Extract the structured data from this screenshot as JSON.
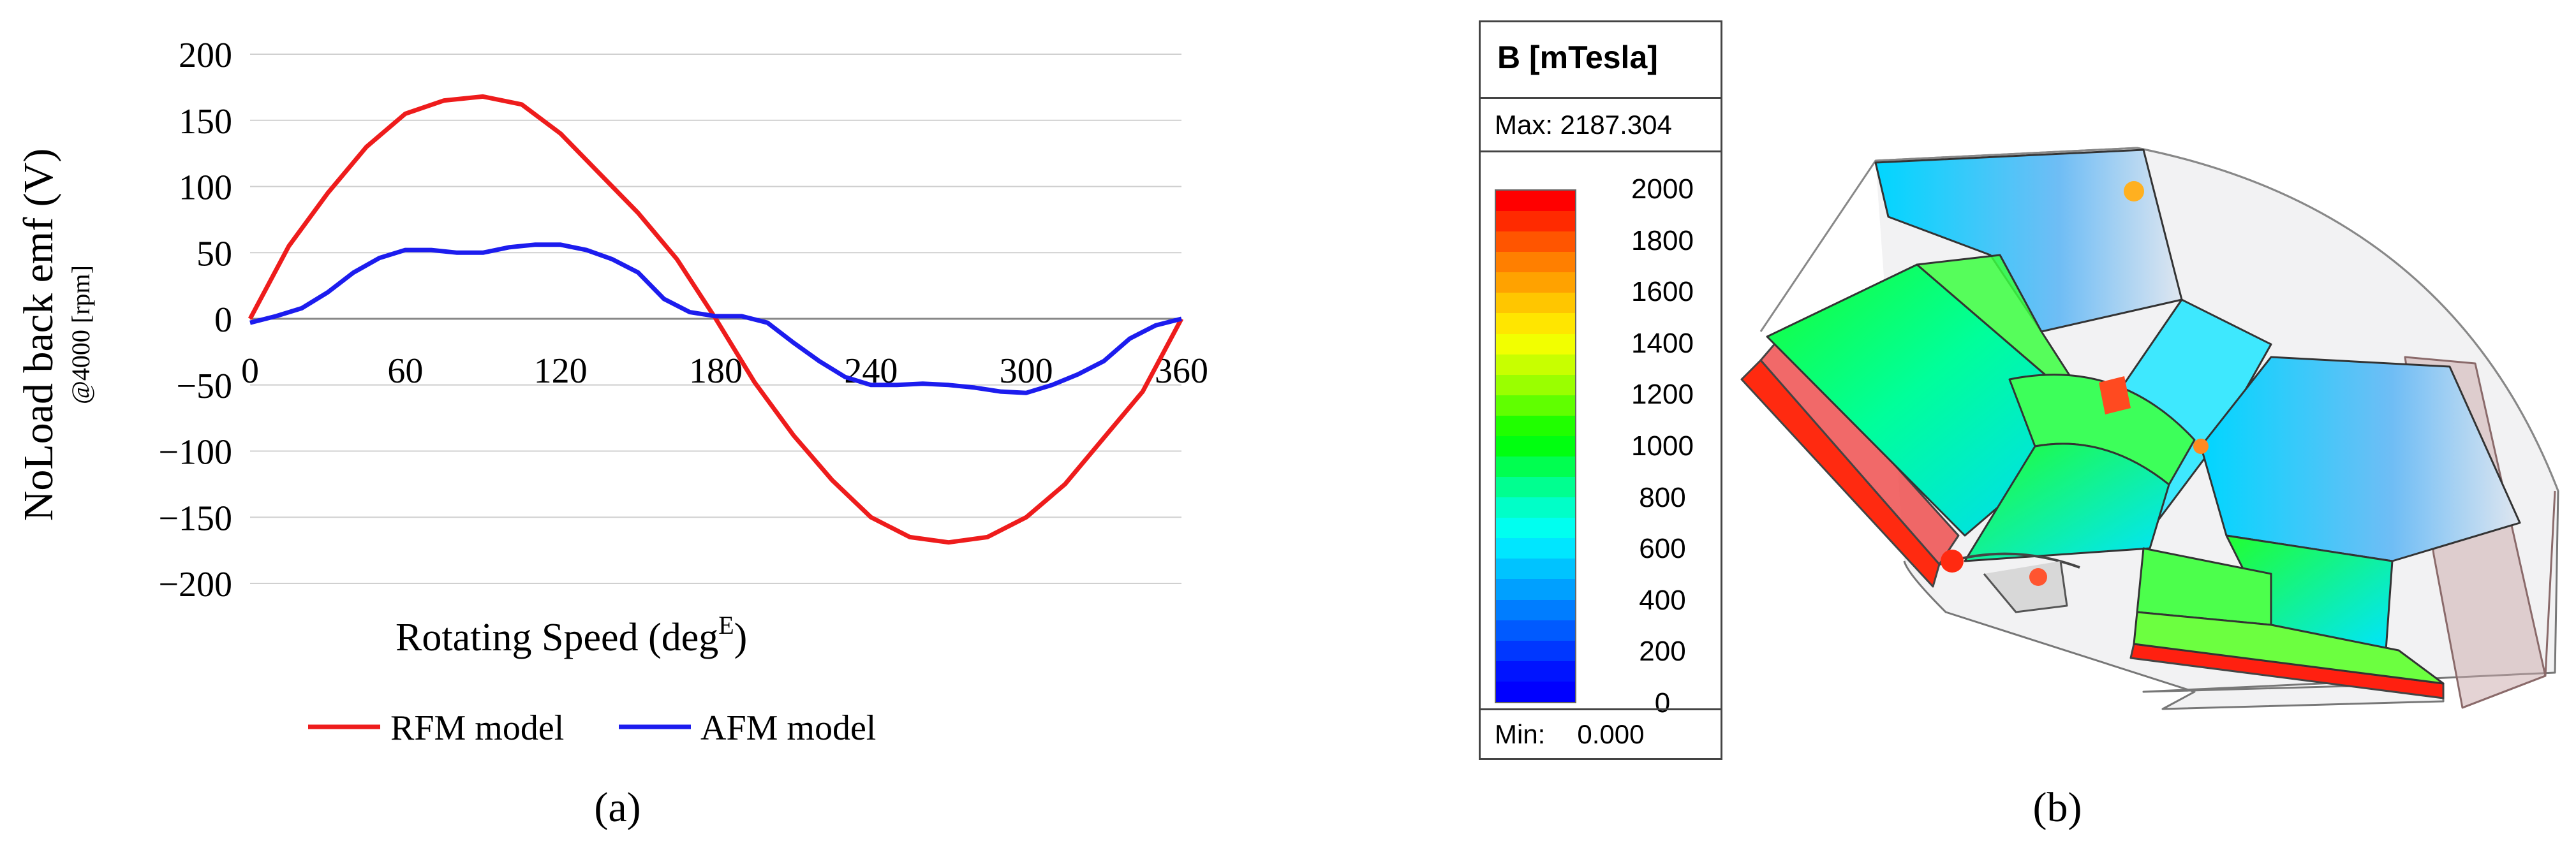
{
  "panel_labels": {
    "a": "(a)",
    "b": "(b)"
  },
  "chart_data": [
    {
      "type": "line",
      "title": "",
      "xlabel": "Rotating Speed (deg",
      "xlabel_sup": "E",
      "xlabel_close": ")",
      "ylabel": "NoLoad back emf (V)",
      "ylabel_sub": "@4000 [rpm]",
      "xlim": [
        0,
        360
      ],
      "ylim": [
        -200,
        200
      ],
      "xticks": [
        0,
        60,
        120,
        180,
        240,
        300,
        360
      ],
      "yticks": [
        200,
        150,
        100,
        50,
        0,
        -50,
        -100,
        -150,
        -200
      ],
      "ytick_labels": [
        "200",
        "150",
        "100",
        "50",
        "0",
        "−50",
        "−100",
        "−150",
        "−200"
      ],
      "grid": true,
      "legend_position": "bottom",
      "series": [
        {
          "name": "RFM model",
          "color": "#ee1c1c",
          "x": [
            0,
            15,
            30,
            45,
            60,
            75,
            90,
            105,
            120,
            135,
            150,
            165,
            180,
            195,
            210,
            225,
            240,
            255,
            270,
            285,
            300,
            315,
            330,
            345,
            360
          ],
          "y": [
            0,
            55,
            95,
            130,
            155,
            165,
            168,
            162,
            140,
            110,
            80,
            45,
            0,
            -48,
            -88,
            -122,
            -150,
            -165,
            -169,
            -165,
            -150,
            -125,
            -90,
            -55,
            0
          ]
        },
        {
          "name": "AFM model",
          "color": "#1c1cee",
          "x": [
            0,
            10,
            20,
            30,
            40,
            50,
            60,
            70,
            80,
            90,
            100,
            110,
            120,
            130,
            140,
            150,
            160,
            170,
            180,
            190,
            200,
            210,
            220,
            230,
            240,
            250,
            260,
            270,
            280,
            290,
            300,
            310,
            320,
            330,
            340,
            350,
            360
          ],
          "y": [
            -3,
            2,
            8,
            20,
            35,
            46,
            52,
            52,
            50,
            50,
            54,
            56,
            56,
            52,
            45,
            35,
            15,
            5,
            2,
            2,
            -3,
            -18,
            -32,
            -44,
            -50,
            -50,
            -49,
            -50,
            -52,
            -55,
            -56,
            -50,
            -42,
            -32,
            -15,
            -5,
            0
          ]
        }
      ]
    },
    {
      "type": "heatmap",
      "title": "B [mTesla]",
      "max_label": "Max: 2187.304",
      "min_label": "Min:",
      "min_value": "0.000",
      "tick_labels": [
        "2000",
        "1800",
        "1600",
        "1400",
        "1200",
        "1000",
        "800",
        "600",
        "400",
        "200",
        "0"
      ],
      "colorscale": [
        "#ff0000",
        "#ff2a00",
        "#ff5500",
        "#ff7f00",
        "#ffa200",
        "#ffc600",
        "#ffe600",
        "#f2ff00",
        "#c8ff00",
        "#9aff00",
        "#60ff00",
        "#20ff00",
        "#00ff10",
        "#00ff50",
        "#00ff90",
        "#00ffc8",
        "#00fff0",
        "#00e6ff",
        "#00c3ff",
        "#00a0ff",
        "#007dff",
        "#005aff",
        "#0037ff",
        "#0014ff",
        "#0000ff"
      ]
    }
  ]
}
